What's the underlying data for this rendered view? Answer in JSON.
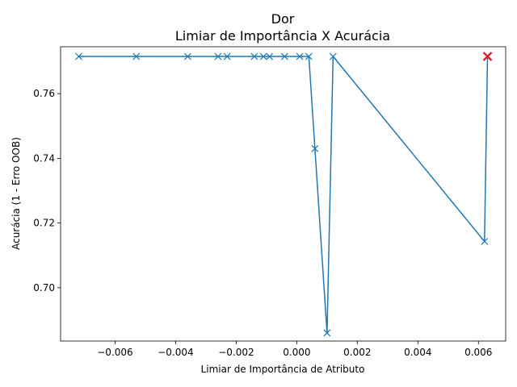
{
  "chart_data": {
    "type": "line",
    "title": "Dor",
    "subtitle": "Limiar de Importância X Acurácia",
    "xlabel": "Limiar de Importância de Atributo",
    "ylabel": "Acurácia (1 - Erro OOB)",
    "xlim": [
      -0.0078,
      0.0069
    ],
    "ylim": [
      0.6835,
      0.7745
    ],
    "xticks": [
      -0.006,
      -0.004,
      -0.002,
      0.0,
      0.002,
      0.004,
      0.006
    ],
    "xtick_labels": [
      "−0.006",
      "−0.004",
      "−0.002",
      "0.000",
      "0.002",
      "0.004",
      "0.006"
    ],
    "yticks": [
      0.7,
      0.72,
      0.74,
      0.76
    ],
    "ytick_labels": [
      "0.70",
      "0.72",
      "0.74",
      "0.76"
    ],
    "grid": false,
    "line_color": "#1f77b4",
    "marker": "x",
    "series": [
      {
        "x": [
          -0.0072,
          -0.0053,
          -0.0036,
          -0.0026,
          -0.0023,
          -0.0014,
          -0.0011,
          -0.0009,
          -0.0004,
          0.0001,
          0.0004,
          0.0006,
          0.001,
          0.0012,
          0.0062,
          0.0063
        ],
        "y": [
          0.7715,
          0.7715,
          0.7715,
          0.7715,
          0.7715,
          0.7715,
          0.7715,
          0.7715,
          0.7715,
          0.7715,
          0.7715,
          0.743,
          0.686,
          0.7715,
          0.7143,
          0.7715
        ]
      }
    ],
    "highlight": {
      "x": 0.0063,
      "y": 0.7715,
      "color": "#d62728",
      "marker": "x"
    }
  }
}
